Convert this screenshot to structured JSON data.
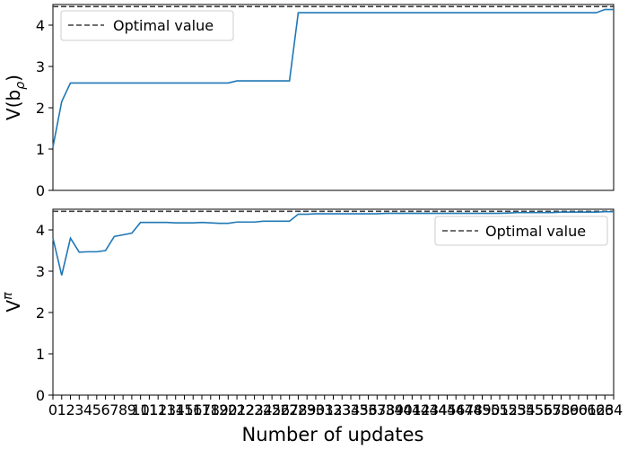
{
  "chart_data": [
    {
      "type": "line",
      "ylabel": "V(b_ρ)",
      "ylabel_main": "V(b",
      "ylabel_sub": "ρ",
      "ylabel_close": ")",
      "ylim": [
        0,
        4.5
      ],
      "yticks": [
        0,
        1,
        2,
        3,
        4
      ],
      "xlim": [
        0,
        64
      ],
      "show_xticks": false,
      "grid": false,
      "legend": {
        "position": "upper-left",
        "entries": [
          {
            "label": "Optimal value",
            "style": "dashed",
            "color": "#404040"
          }
        ]
      },
      "hline": {
        "name": "Optimal value",
        "y": 4.45,
        "color": "#404040"
      },
      "series": [
        {
          "color": "#1f77b4",
          "x": [
            0,
            1,
            2,
            3,
            4,
            5,
            6,
            7,
            8,
            9,
            10,
            11,
            12,
            13,
            14,
            15,
            16,
            17,
            18,
            19,
            20,
            21,
            22,
            23,
            24,
            25,
            26,
            27,
            28,
            29,
            30,
            31,
            32,
            33,
            34,
            35,
            36,
            37,
            38,
            39,
            40,
            41,
            42,
            43,
            44,
            45,
            46,
            47,
            48,
            49,
            50,
            51,
            52,
            53,
            54,
            55,
            56,
            57,
            58,
            59,
            60,
            61,
            62,
            63,
            64
          ],
          "values": [
            1.05,
            2.15,
            2.6,
            2.6,
            2.6,
            2.6,
            2.6,
            2.6,
            2.6,
            2.6,
            2.6,
            2.6,
            2.6,
            2.6,
            2.6,
            2.6,
            2.6,
            2.6,
            2.6,
            2.6,
            2.6,
            2.65,
            2.65,
            2.65,
            2.65,
            2.65,
            2.65,
            2.65,
            4.3,
            4.3,
            4.3,
            4.3,
            4.3,
            4.3,
            4.3,
            4.3,
            4.3,
            4.3,
            4.3,
            4.3,
            4.3,
            4.3,
            4.3,
            4.3,
            4.3,
            4.3,
            4.3,
            4.3,
            4.3,
            4.3,
            4.3,
            4.3,
            4.3,
            4.3,
            4.3,
            4.3,
            4.3,
            4.3,
            4.3,
            4.3,
            4.3,
            4.3,
            4.3,
            4.38,
            4.38
          ]
        }
      ]
    },
    {
      "type": "line",
      "ylabel": "Vπ",
      "ylabel_main": "V",
      "ylabel_sup": "π",
      "xlabel": "Number of updates",
      "ylim": [
        0,
        4.5
      ],
      "yticks": [
        0,
        1,
        2,
        3,
        4
      ],
      "xlim": [
        0,
        64
      ],
      "xticks": [
        0,
        1,
        2,
        3,
        4,
        5,
        6,
        7,
        8,
        9,
        10,
        11,
        12,
        13,
        14,
        15,
        16,
        17,
        18,
        19,
        20,
        21,
        22,
        23,
        24,
        25,
        26,
        27,
        28,
        29,
        30,
        31,
        32,
        33,
        34,
        35,
        36,
        37,
        38,
        39,
        40,
        41,
        42,
        43,
        44,
        45,
        46,
        47,
        48,
        49,
        50,
        51,
        52,
        53,
        54,
        55,
        56,
        57,
        58,
        59,
        60,
        61,
        62,
        63,
        64
      ],
      "grid": false,
      "legend": {
        "position": "upper-right",
        "entries": [
          {
            "label": "Optimal value",
            "style": "dashed",
            "color": "#404040"
          }
        ]
      },
      "hline": {
        "name": "Optimal value",
        "y": 4.45,
        "color": "#404040"
      },
      "series": [
        {
          "color": "#1f77b4",
          "x": [
            0,
            1,
            2,
            3,
            4,
            5,
            6,
            7,
            8,
            9,
            10,
            11,
            12,
            13,
            14,
            15,
            16,
            17,
            18,
            19,
            20,
            21,
            22,
            23,
            24,
            25,
            26,
            27,
            28,
            29,
            30,
            31,
            32,
            33,
            34,
            35,
            36,
            37,
            38,
            39,
            40,
            41,
            42,
            43,
            44,
            45,
            46,
            47,
            48,
            49,
            50,
            51,
            52,
            53,
            54,
            55,
            56,
            57,
            58,
            59,
            60,
            61,
            62,
            63,
            64
          ],
          "values": [
            3.8,
            2.9,
            3.8,
            3.46,
            3.47,
            3.47,
            3.5,
            3.84,
            3.88,
            3.92,
            4.18,
            4.18,
            4.18,
            4.18,
            4.17,
            4.17,
            4.17,
            4.18,
            4.17,
            4.16,
            4.16,
            4.19,
            4.19,
            4.19,
            4.21,
            4.21,
            4.21,
            4.21,
            4.38,
            4.38,
            4.39,
            4.39,
            4.39,
            4.39,
            4.39,
            4.39,
            4.39,
            4.39,
            4.4,
            4.4,
            4.4,
            4.4,
            4.4,
            4.4,
            4.4,
            4.4,
            4.4,
            4.4,
            4.4,
            4.4,
            4.4,
            4.4,
            4.41,
            4.42,
            4.42,
            4.42,
            4.42,
            4.42,
            4.43,
            4.43,
            4.43,
            4.43,
            4.43,
            4.44,
            4.44
          ]
        }
      ]
    }
  ]
}
